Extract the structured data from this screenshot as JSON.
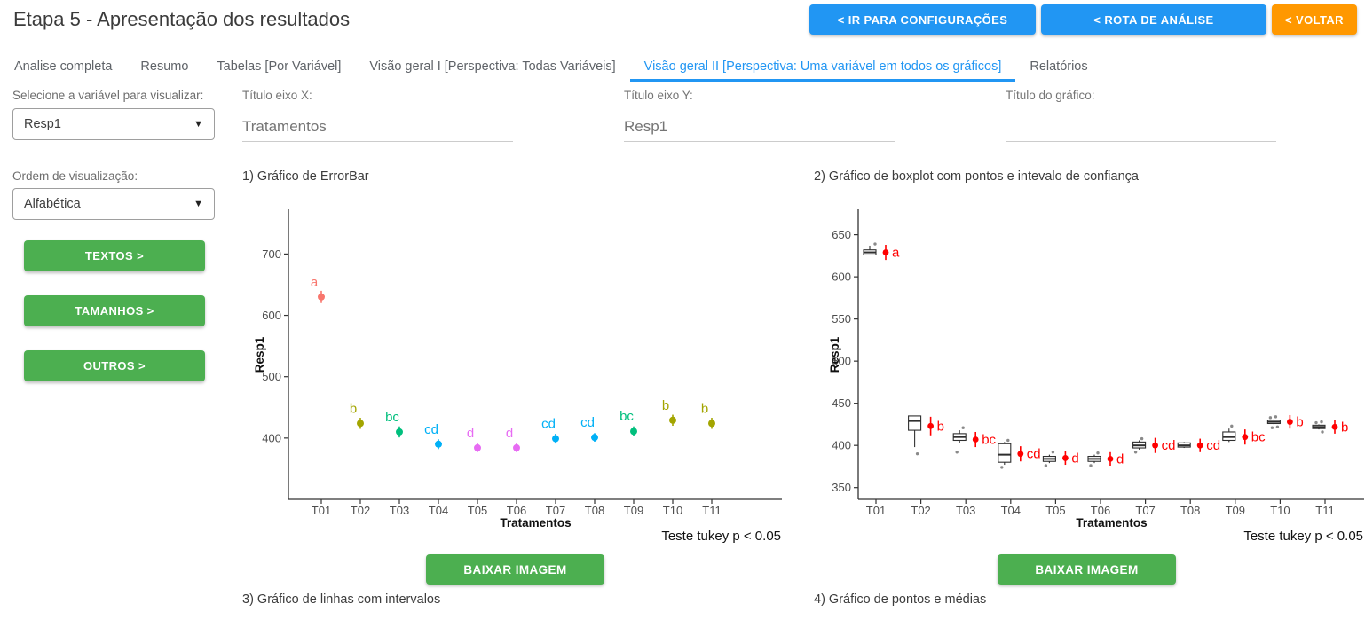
{
  "header": {
    "title": "Etapa 5 - Apresentação dos resultados",
    "buttons": [
      {
        "label": "< IR PARA CONFIGURAÇÕES",
        "color": "#2196F3"
      },
      {
        "label": "< ROTA DE ANÁLISE",
        "color": "#2196F3"
      },
      {
        "label": "< VOLTAR",
        "color": "#FF9800"
      }
    ]
  },
  "tabs": {
    "items": [
      {
        "label": "Analise completa",
        "active": false
      },
      {
        "label": "Resumo",
        "active": false
      },
      {
        "label": "Tabelas [Por Variável]",
        "active": false
      },
      {
        "label": "Visão geral I [Perspectiva: Todas Variáveis]",
        "active": false
      },
      {
        "label": "Visão geral II [Perspectiva: Uma variável em todos os gráficos]",
        "active": true
      },
      {
        "label": "Relatórios",
        "active": false
      }
    ],
    "active_color": "#2196F3"
  },
  "sidebar": {
    "variable_select": {
      "label": "Selecione a variável para visualizar:",
      "value": "Resp1"
    },
    "order_select": {
      "label": "Ordem de visualização:",
      "value": "Alfabética"
    },
    "buttons": [
      "TEXTOS >",
      "TAMANHOS >",
      "OUTROS >"
    ],
    "button_color": "#4CAF50"
  },
  "title_inputs": [
    {
      "label": "Título eixo X:",
      "value": "Tratamentos"
    },
    {
      "label": "Título eixo Y:",
      "value": "Resp1"
    },
    {
      "label": "Título do gráfico:",
      "value": ""
    }
  ],
  "charts": {
    "download_label": "BAIXAR IMAGEM"
  },
  "chart_data": [
    {
      "type": "scatter",
      "title": "1) Gráfico de ErrorBar",
      "xlabel": "Tratamentos",
      "ylabel": "Resp1",
      "caption": "Teste tukey p < 0.05",
      "categories": [
        "T01",
        "T02",
        "T03",
        "T04",
        "T05",
        "T06",
        "T07",
        "T08",
        "T09",
        "T10",
        "T11"
      ],
      "means": [
        630,
        424,
        410,
        390,
        384,
        384,
        399,
        401,
        411,
        429,
        424
      ],
      "errors": [
        10,
        9,
        9,
        8,
        7,
        7,
        8,
        7,
        8,
        9,
        9
      ],
      "letters": [
        "a",
        "b",
        "bc",
        "cd",
        "d",
        "d",
        "cd",
        "cd",
        "bc",
        "b",
        "b"
      ],
      "colors": [
        "#F8766D",
        "#A3A500",
        "#00BF7D",
        "#00B0F6",
        "#E76BF3",
        "#E76BF3",
        "#00B0F6",
        "#00B0F6",
        "#00BF7D",
        "#A3A500",
        "#A3A500"
      ],
      "yticks": [
        400,
        500,
        600,
        700
      ],
      "ylim": [
        300,
        770
      ],
      "legend": "none",
      "grid": false
    },
    {
      "type": "boxplot",
      "title": "2) Gráfico de boxplot com pontos e intevalo de confiança",
      "xlabel": "Tratamentos",
      "ylabel": "Resp1",
      "caption": "Teste tukey p < 0.05",
      "categories": [
        "T01",
        "T02",
        "T03",
        "T04",
        "T05",
        "T06",
        "T07",
        "T08",
        "T09",
        "T10",
        "T11"
      ],
      "letter_color": "#FF0000",
      "mean_color": "#FF0000",
      "point_color": "#8a8a8a",
      "yticks": [
        350,
        400,
        450,
        500,
        550,
        600,
        650
      ],
      "ylim": [
        336,
        678
      ],
      "grid": false,
      "boxes": [
        {
          "lo": 626,
          "q1": 626,
          "med": 629,
          "q3": 632,
          "hi": 637,
          "dots": [
            [
              639,
              6
            ]
          ],
          "mean": 629,
          "err": 9,
          "letter": "a"
        },
        {
          "lo": 398,
          "q1": 418,
          "med": 429,
          "q3": 435,
          "hi": 435,
          "dots": [
            [
              390,
              3
            ]
          ],
          "mean": 423,
          "err": 11,
          "letter": "b"
        },
        {
          "lo": 403,
          "q1": 406,
          "med": 410,
          "q3": 414,
          "hi": 418,
          "dots": [
            [
              421,
              4
            ],
            [
              392,
              -3
            ]
          ],
          "mean": 407,
          "err": 9,
          "letter": "bc"
        },
        {
          "lo": 377,
          "q1": 380,
          "med": 389,
          "q3": 402,
          "hi": 404,
          "dots": [
            [
              406,
              4
            ],
            [
              374,
              -3
            ]
          ],
          "mean": 390,
          "err": 9,
          "letter": "cd"
        },
        {
          "lo": 379,
          "q1": 381,
          "med": 384,
          "q3": 387,
          "hi": 389,
          "dots": [
            [
              392,
              4
            ],
            [
              376,
              -4
            ]
          ],
          "mean": 385,
          "err": 8,
          "letter": "d"
        },
        {
          "lo": 379,
          "q1": 381,
          "med": 384,
          "q3": 387,
          "hi": 389,
          "dots": [
            [
              391,
              4
            ],
            [
              376,
              -4
            ]
          ],
          "mean": 384,
          "err": 8,
          "letter": "d"
        },
        {
          "lo": 395,
          "q1": 397,
          "med": 400,
          "q3": 404,
          "hi": 406,
          "dots": [
            [
              408,
              3
            ],
            [
              392,
              -4
            ]
          ],
          "mean": 400,
          "err": 9,
          "letter": "cd"
        },
        {
          "lo": 397,
          "q1": 398,
          "med": 400,
          "q3": 403,
          "hi": 404,
          "dots": [],
          "mean": 400,
          "err": 8,
          "letter": "cd"
        },
        {
          "lo": 404,
          "q1": 406,
          "med": 410,
          "q3": 416,
          "hi": 420,
          "dots": [
            [
              423,
              3
            ]
          ],
          "mean": 410,
          "err": 9,
          "letter": "bc"
        },
        {
          "lo": 425,
          "q1": 426,
          "med": 428,
          "q3": 430,
          "hi": 431,
          "dots": [
            [
              434,
              2
            ],
            [
              433,
              -4
            ],
            [
              422,
              4
            ],
            [
              421,
              -2
            ]
          ],
          "mean": 428,
          "err": 8,
          "letter": "b"
        },
        {
          "lo": 419,
          "q1": 420,
          "med": 422,
          "q3": 424,
          "hi": 425,
          "dots": [
            [
              428,
              3
            ],
            [
              427,
              -3
            ],
            [
              416,
              4
            ]
          ],
          "mean": 422,
          "err": 8,
          "letter": "b"
        }
      ]
    }
  ],
  "footer_titles": [
    "3) Gráfico de linhas com intervalos",
    "4) Gráfico de pontos e médias"
  ]
}
